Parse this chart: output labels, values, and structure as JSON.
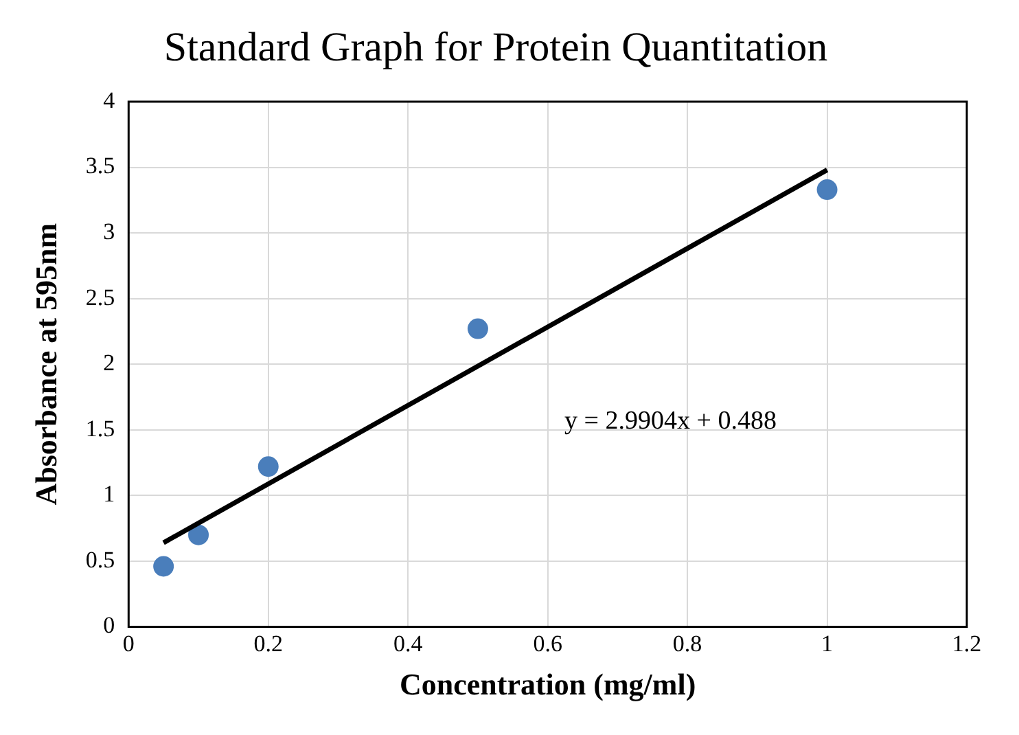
{
  "chart_data": {
    "type": "scatter",
    "title": "Standard Graph for Protein Quantitation",
    "xlabel": "Concentration (mg/ml)",
    "ylabel": "Absorbance at 595nm",
    "series": [
      {
        "type": "scatter",
        "marker": "circle",
        "color": "#4a7ebb",
        "x": [
          0.05,
          0.1,
          0.2,
          0.5,
          1
        ],
        "values": [
          0.46,
          0.7,
          1.22,
          2.27,
          3.33
        ]
      },
      {
        "type": "line",
        "marker": "none",
        "color": "#000000",
        "x": [
          0.05,
          1
        ],
        "values": [
          0.64,
          3.48
        ]
      }
    ],
    "xlim": [
      0,
      1.2
    ],
    "xticks": [
      0,
      0.2,
      0.4,
      0.6,
      0.8,
      1,
      1.2
    ],
    "ylim": [
      0,
      4
    ],
    "yticks": [
      0,
      0.5,
      1,
      1.5,
      2,
      2.5,
      3,
      3.5,
      4
    ],
    "grid": true,
    "legend": false,
    "annotations": [
      "y = 2.9904x + 0.488"
    ]
  }
}
